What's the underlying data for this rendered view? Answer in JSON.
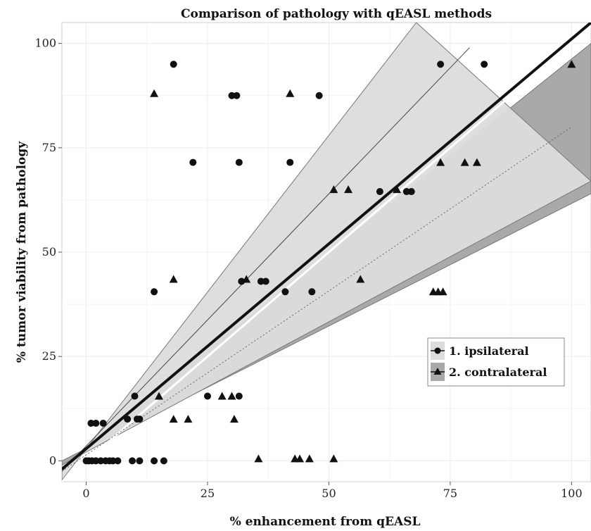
{
  "chart_data": {
    "type": "scatter",
    "title": "Comparison of pathology with qEASL methods",
    "xlabel": "% enhancement from qEASL",
    "ylabel": "% tumor viability from pathology",
    "xlim": [
      -5,
      104
    ],
    "ylim": [
      -5,
      105
    ],
    "x_ticks": [
      0,
      25,
      50,
      75,
      100
    ],
    "y_ticks": [
      0,
      25,
      50,
      75,
      100
    ],
    "grid": true,
    "legend_position": "inside-right",
    "colors": {
      "points": "#111111",
      "ipsilateral_band": "#dcdcdc",
      "contralateral_band": "#a9a9a9",
      "band_edge": "#777777",
      "gridline": "#ececec"
    },
    "series": [
      {
        "name": "1. ipsilateral",
        "marker": "circle",
        "points": [
          [
            18,
            95
          ],
          [
            73,
            95
          ],
          [
            82,
            95
          ],
          [
            30,
            87.5
          ],
          [
            31,
            87.5
          ],
          [
            48,
            87.5
          ],
          [
            22,
            71.5
          ],
          [
            31.5,
            71.5
          ],
          [
            42,
            71.5
          ],
          [
            60.5,
            64.5
          ],
          [
            66,
            64.5
          ],
          [
            67,
            64.5
          ],
          [
            32,
            43
          ],
          [
            36,
            43
          ],
          [
            37,
            43
          ],
          [
            14,
            40.5
          ],
          [
            41,
            40.5
          ],
          [
            46.5,
            40.5
          ],
          [
            10,
            15.5
          ],
          [
            25,
            15.5
          ],
          [
            31.5,
            15.5
          ],
          [
            1,
            9
          ],
          [
            2,
            9
          ],
          [
            3.5,
            9
          ],
          [
            8.5,
            10
          ],
          [
            10.5,
            10
          ],
          [
            11,
            10
          ],
          [
            0,
            0
          ],
          [
            0.5,
            0
          ],
          [
            1.2,
            0
          ],
          [
            2,
            0
          ],
          [
            3,
            0
          ],
          [
            4,
            0
          ],
          [
            4.8,
            0
          ],
          [
            5.5,
            0
          ],
          [
            6.5,
            0
          ],
          [
            9.5,
            0
          ],
          [
            11,
            0
          ],
          [
            14,
            0
          ],
          [
            16,
            0
          ]
        ]
      },
      {
        "name": "2. contralateral",
        "marker": "triangle",
        "points": [
          [
            100,
            95
          ],
          [
            14,
            88
          ],
          [
            42,
            88
          ],
          [
            73,
            71.5
          ],
          [
            78,
            71.5
          ],
          [
            80.5,
            71.5
          ],
          [
            51,
            65
          ],
          [
            54,
            65
          ],
          [
            64,
            65
          ],
          [
            18,
            43.5
          ],
          [
            33,
            43.5
          ],
          [
            56.5,
            43.5
          ],
          [
            71.5,
            40.5
          ],
          [
            72.5,
            40.5
          ],
          [
            73.5,
            40.5
          ],
          [
            15,
            15.5
          ],
          [
            28,
            15.5
          ],
          [
            30,
            15.5
          ],
          [
            18,
            10
          ],
          [
            21,
            10
          ],
          [
            30.5,
            10
          ],
          [
            35.5,
            0.5
          ],
          [
            43,
            0.5
          ],
          [
            44,
            0.5
          ],
          [
            46,
            0.5
          ],
          [
            51,
            0.5
          ]
        ]
      }
    ],
    "fit_lines": [
      {
        "name": "1. ipsilateral",
        "style": "thin solid",
        "from": [
          -5,
          -2.5
        ],
        "to": [
          79,
          99
        ],
        "band_upper_x_at_top": [
          -5,
          -4.6,
          68,
          105
        ],
        "band_lower": [
          [
            -5,
            -1
          ],
          [
            104,
            67
          ]
        ]
      },
      {
        "name": "2. contralateral",
        "style": "dotted",
        "from": [
          -5,
          -2.5
        ],
        "to": [
          100,
          80
        ],
        "band_upper": [
          [
            -5,
            -1.5
          ],
          [
            104,
            100
          ]
        ],
        "band_lower": [
          [
            -5,
            0
          ],
          [
            104,
            64
          ]
        ]
      },
      {
        "name": "overall",
        "style": "thick solid",
        "from": [
          -5,
          -2
        ],
        "to": [
          104,
          105
        ]
      },
      {
        "name": "identity",
        "style": "white",
        "from": [
          -5,
          -5
        ],
        "to": [
          104,
          104
        ]
      }
    ]
  }
}
